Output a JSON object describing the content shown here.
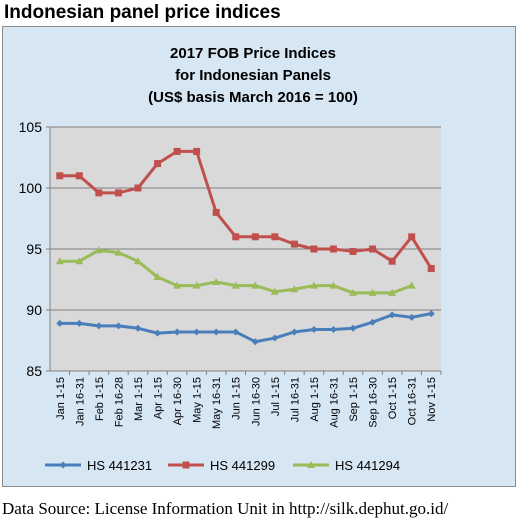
{
  "page": {
    "heading": "Indonesian panel price indices",
    "source": "Data Source: License Information Unit in http://silk.dephut.go.id/"
  },
  "colors": {
    "frame_background": "#d7e6f3",
    "plot_background": "#d9d9d9",
    "gridline": "#808080"
  },
  "chart_data": {
    "type": "line",
    "title": [
      "2017 FOB Price Indices",
      "for Indonesian Panels",
      "(US$ basis March 2016 = 100)"
    ],
    "categories": [
      "Jan 1-15",
      "Jan 16-31",
      "Feb 1-15",
      "Feb 16-28",
      "Mar 1-15",
      "Apr 1-15",
      "Apr 16-30",
      "May 1-15",
      "May 16-31",
      "Jun 1-15",
      "Jun 16-30",
      "Jul 1-15",
      "Jul 16-31",
      "Aug 1-15",
      "Aug 16-31",
      "Sep 1-15",
      "Sep 16-30",
      "Oct 1-15",
      "Oct 16-31",
      "Nov 1-15"
    ],
    "x_tick_labels": [
      "Jan 1-15",
      "Jan 16-31",
      "Feb 1-15",
      "Feb 16-28",
      "Mar 1-15",
      "Apr 1-15",
      "Apr 16-30",
      "May 1-15",
      "May 16-31",
      "Jun 1-15",
      "Jun 16-30",
      "Jul 1-15",
      "Jul 16-31",
      "Aug 1-15",
      "Aug 16-31",
      "Sep 1-15",
      "Sep 16-30",
      "Oct 1-15",
      "Oct 16-31",
      "Nov 1-15"
    ],
    "ylim": [
      85,
      105
    ],
    "yticks": [
      85,
      90,
      95,
      100,
      105
    ],
    "grid": true,
    "legend_position": "bottom",
    "series": [
      {
        "name": "HS 441231",
        "color": "#4a7ebb",
        "marker": "diamond",
        "values": [
          88.9,
          88.9,
          88.7,
          88.7,
          88.5,
          88.1,
          88.2,
          88.2,
          88.2,
          88.2,
          87.4,
          87.7,
          88.2,
          88.4,
          88.4,
          88.5,
          89.0,
          89.6,
          89.4,
          89.7
        ]
      },
      {
        "name": "HS 441299",
        "color": "#c0504d",
        "marker": "square",
        "values": [
          101.0,
          101.0,
          99.6,
          99.6,
          100.0,
          102.0,
          103.0,
          103.0,
          98.0,
          96.0,
          96.0,
          96.0,
          95.4,
          95.0,
          95.0,
          94.8,
          95.0,
          94.0,
          96.0,
          93.4
        ]
      },
      {
        "name": "HS 441294",
        "color": "#9bbb59",
        "marker": "triangle",
        "values": [
          94.0,
          94.0,
          94.9,
          94.7,
          94.0,
          92.7,
          92.0,
          92.0,
          92.3,
          92.0,
          92.0,
          91.5,
          91.7,
          92.0,
          92.0,
          91.4,
          91.4,
          91.4,
          92.0,
          null
        ]
      }
    ]
  }
}
